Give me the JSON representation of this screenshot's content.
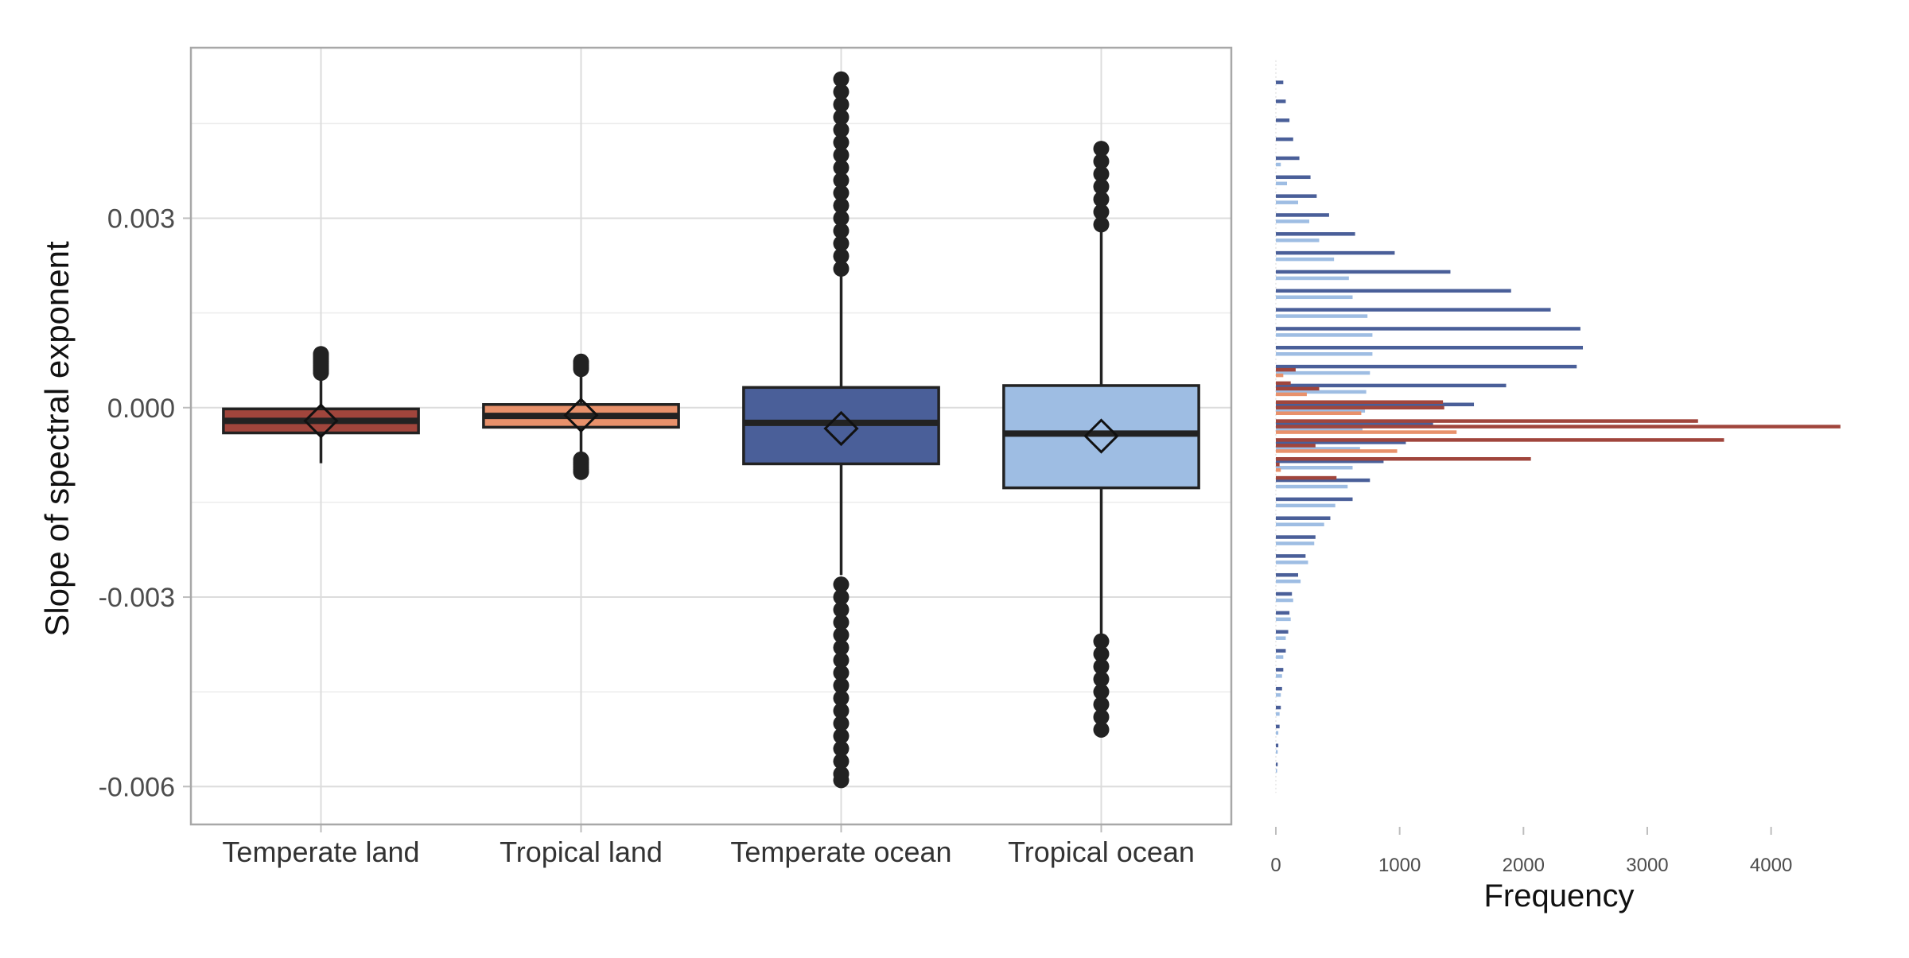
{
  "chart_data": [
    {
      "type": "boxplot",
      "ylabel": "Slope of spectral exponent",
      "xlabel": "",
      "ylim": [
        -0.0066,
        0.0057
      ],
      "yticks": [
        -0.006,
        -0.003,
        0.0,
        0.003
      ],
      "ytick_labels": [
        "-0.006",
        "-0.003",
        "0.000",
        "0.003"
      ],
      "grid": true,
      "categories": [
        "Temperate land",
        "Tropical land",
        "Temperate ocean",
        "Tropical ocean"
      ],
      "colors": [
        "#a0453c",
        "#e8916b",
        "#4a5f99",
        "#9ebde3"
      ],
      "boxes": [
        {
          "name": "Temperate land",
          "q1": -0.0004,
          "median": -0.00021,
          "q3": -2e-05,
          "mean": -0.00021,
          "whisker_low": -0.00088,
          "whisker_high": 0.0005,
          "outliers_high": [
            0.00055,
            0.00058,
            0.00061,
            0.00064,
            0.00067,
            0.0007,
            0.00073,
            0.00076,
            0.00079,
            0.00082,
            0.00085
          ],
          "outliers_low": []
        },
        {
          "name": "Tropical land",
          "q1": -0.00031,
          "median": -0.00013,
          "q3": 5e-05,
          "mean": -0.00012,
          "whisker_low": -0.00078,
          "whisker_high": 0.00057,
          "outliers_high": [
            0.00061,
            0.00064,
            0.00067,
            0.0007,
            0.00073
          ],
          "outliers_low": [
            -0.00082,
            -0.00086,
            -0.0009,
            -0.00094,
            -0.00098,
            -0.00102
          ]
        },
        {
          "name": "Temperate ocean",
          "q1": -0.00089,
          "median": -0.00024,
          "q3": 0.00032,
          "mean": -0.00033,
          "whisker_low": -0.00265,
          "whisker_high": 0.0021,
          "outliers_high": [
            0.0022,
            0.0024,
            0.0026,
            0.0028,
            0.003,
            0.0032,
            0.0034,
            0.0036,
            0.0038,
            0.004,
            0.0042,
            0.0044,
            0.0046,
            0.0048,
            0.005,
            0.0052
          ],
          "outliers_low": [
            -0.0028,
            -0.003,
            -0.0032,
            -0.0034,
            -0.0036,
            -0.0038,
            -0.004,
            -0.0042,
            -0.0044,
            -0.0046,
            -0.0048,
            -0.005,
            -0.0052,
            -0.0054,
            -0.0056,
            -0.0058,
            -0.0059
          ]
        },
        {
          "name": "Tropical ocean",
          "q1": -0.00127,
          "median": -0.00041,
          "q3": 0.00035,
          "mean": -0.00045,
          "whisker_low": -0.0036,
          "whisker_high": 0.00285,
          "outliers_high": [
            0.0029,
            0.0031,
            0.0033,
            0.0035,
            0.0037,
            0.0039,
            0.0041
          ],
          "outliers_low": [
            -0.0037,
            -0.0039,
            -0.0041,
            -0.0043,
            -0.0045,
            -0.0047,
            -0.0049,
            -0.0051
          ]
        }
      ]
    },
    {
      "type": "bar",
      "orientation": "horizontal",
      "xlabel": "Frequency",
      "xlim": [
        0,
        4600
      ],
      "xticks": [
        0,
        1000,
        2000,
        3000,
        4000
      ],
      "xtick_labels": [
        "0",
        "1000",
        "2000",
        "3000",
        "4000"
      ],
      "y_shared_with_boxplot": true,
      "series": [
        {
          "color": "#4a5f99",
          "y": [
            -0.0057,
            -0.0054,
            -0.0051,
            -0.0048,
            -0.0045,
            -0.0042,
            -0.0039,
            -0.0036,
            -0.0033,
            -0.003,
            -0.0027,
            -0.0024,
            -0.0021,
            -0.0018,
            -0.0015,
            -0.0012,
            -0.0009,
            -0.0006,
            -0.0003,
            0.0,
            0.0003,
            0.0006,
            0.0009,
            0.0012,
            0.0015,
            0.0018,
            0.0021,
            0.0024,
            0.0027,
            0.003,
            0.0033,
            0.0036,
            0.0039,
            0.0042,
            0.0045,
            0.0048,
            0.0051
          ],
          "values": [
            15,
            20,
            30,
            40,
            50,
            60,
            80,
            100,
            110,
            130,
            180,
            240,
            320,
            440,
            620,
            760,
            870,
            1050,
            1270,
            1600,
            1860,
            2430,
            2480,
            2460,
            2220,
            1900,
            1410,
            960,
            640,
            430,
            330,
            280,
            190,
            140,
            110,
            80,
            60
          ]
        },
        {
          "color": "#9ebde3",
          "y": [
            -0.0057,
            -0.0054,
            -0.0051,
            -0.0048,
            -0.0045,
            -0.0042,
            -0.0039,
            -0.0036,
            -0.0033,
            -0.003,
            -0.0027,
            -0.0024,
            -0.0021,
            -0.0018,
            -0.0015,
            -0.0012,
            -0.0009,
            -0.0006,
            -0.0003,
            0.0,
            0.0003,
            0.0006,
            0.0009,
            0.0012,
            0.0015,
            0.0018,
            0.0021,
            0.0024,
            0.0027,
            0.003,
            0.0033,
            0.0036,
            0.0039
          ],
          "values": [
            10,
            15,
            20,
            30,
            40,
            50,
            60,
            80,
            120,
            140,
            200,
            260,
            310,
            390,
            480,
            580,
            620,
            680,
            700,
            720,
            730,
            760,
            780,
            780,
            740,
            620,
            590,
            470,
            350,
            270,
            180,
            90,
            40
          ]
        },
        {
          "color": "#a0453c",
          "y": [
            -0.0009,
            -0.0006,
            -0.0003,
            0.0,
            0.0003,
            0.0006
          ],
          "values": [
            30,
            320,
            4560,
            1360,
            350,
            160
          ]
        },
        {
          "color": "#e8916b",
          "y": [
            -0.0009,
            -0.0006,
            -0.0003,
            0.0,
            0.0003,
            0.0006
          ],
          "values": [
            40,
            980,
            1460,
            690,
            250,
            60
          ]
        }
      ],
      "extra_series": [
        {
          "color": "#a0453c",
          "y": [
            -0.0012,
            -0.0009,
            -0.0006,
            -0.0003,
            0.0,
            0.0003
          ],
          "values": [
            490,
            2060,
            3620,
            3410,
            1350,
            120
          ]
        }
      ]
    }
  ]
}
